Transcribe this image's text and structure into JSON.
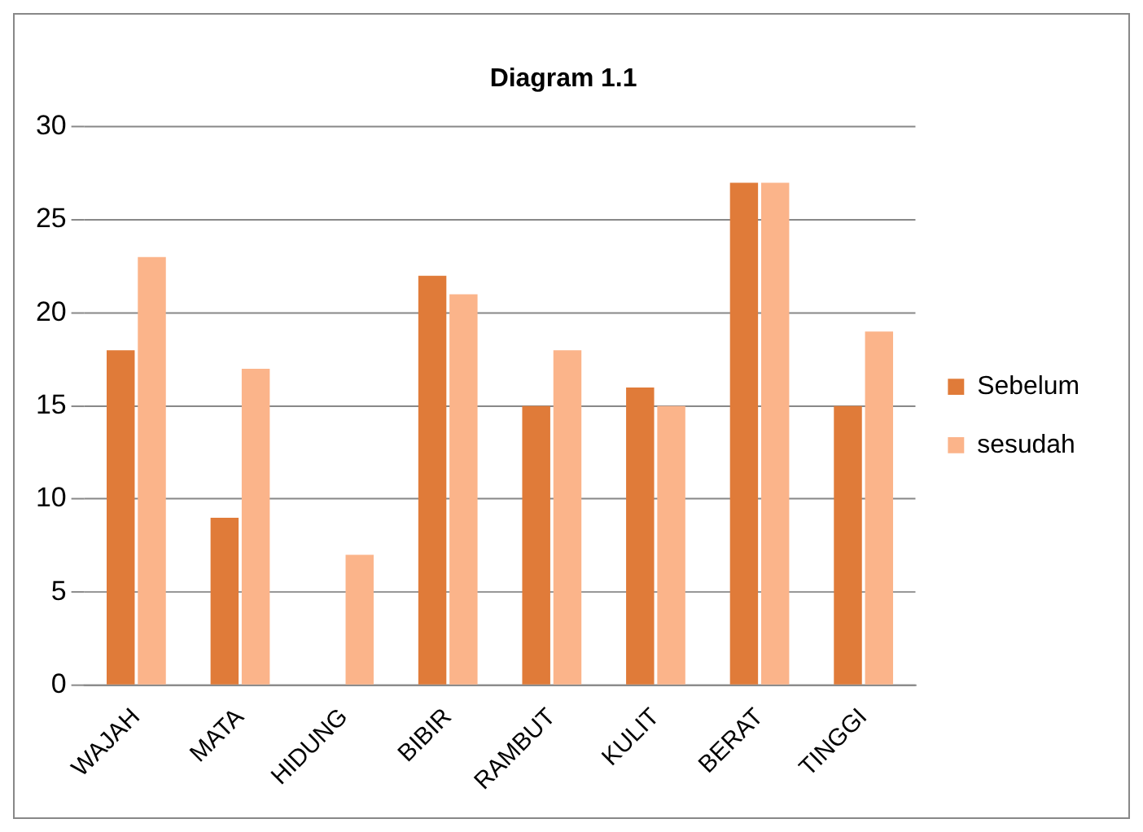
{
  "chart_data": {
    "type": "bar",
    "title": "Diagram 1.1",
    "categories": [
      "WAJAH",
      "MATA",
      "HIDUNG",
      "BIBIR",
      "RAMBUT",
      "KULIT",
      "BERAT",
      "TINGGI"
    ],
    "series": [
      {
        "name": "Sebelum",
        "color": "#e07b39",
        "values": [
          18,
          9,
          0,
          22,
          15,
          16,
          27,
          15
        ]
      },
      {
        "name": "sesudah",
        "color": "#fbb48a",
        "values": [
          23,
          17,
          7,
          21,
          18,
          15,
          27,
          19
        ]
      }
    ],
    "ylim": [
      0,
      30
    ],
    "yticks": [
      0,
      5,
      10,
      15,
      20,
      25,
      30
    ],
    "grid": "y",
    "legend": "right"
  }
}
